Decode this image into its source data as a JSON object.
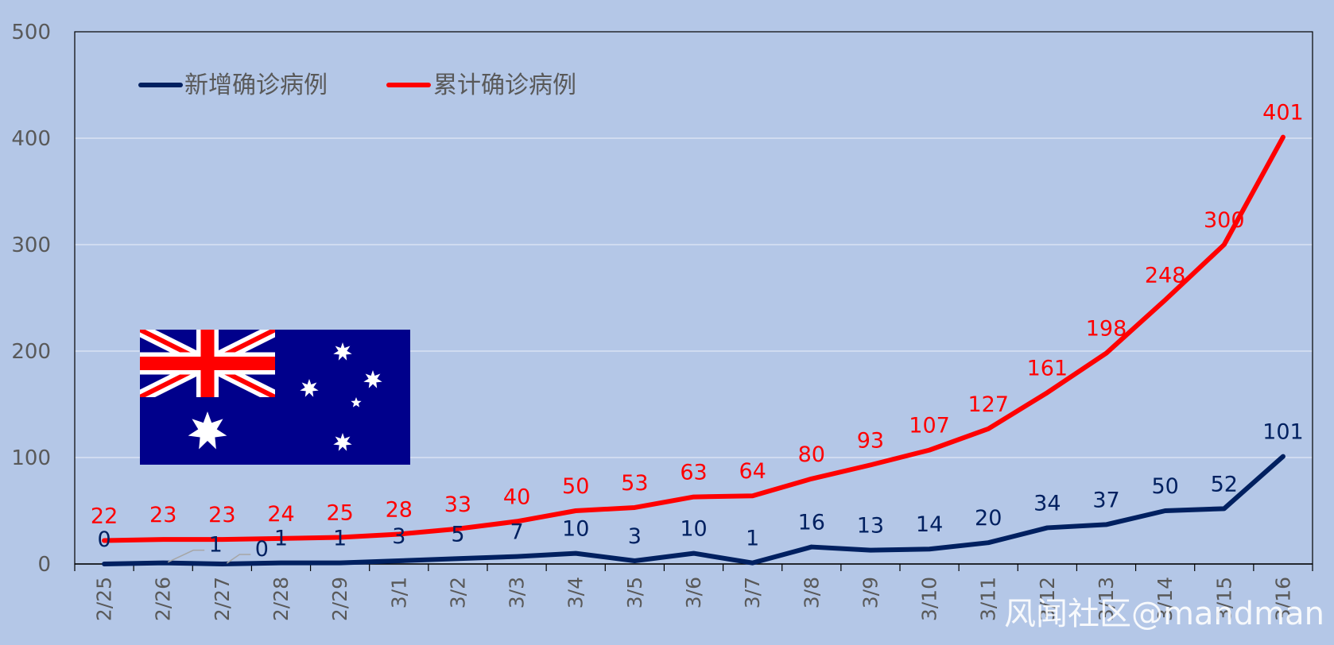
{
  "chart_data": {
    "type": "line",
    "categories": [
      "2/25",
      "2/26",
      "2/27",
      "2/28",
      "2/29",
      "3/1",
      "3/2",
      "3/3",
      "3/4",
      "3/5",
      "3/6",
      "3/7",
      "3/8",
      "3/9",
      "3/10",
      "3/11",
      "3/12",
      "3/13",
      "3/14",
      "3/15",
      "3/16"
    ],
    "series": [
      {
        "name": "新增确诊病例",
        "color": "#002060",
        "values": [
          0,
          1,
          0,
          1,
          1,
          3,
          5,
          7,
          10,
          3,
          10,
          1,
          16,
          13,
          14,
          20,
          34,
          37,
          50,
          52,
          101
        ],
        "labels": [
          "0",
          "1",
          "0",
          "1",
          "1",
          "3",
          "5",
          "7",
          "10",
          "3",
          "10",
          "1",
          "16",
          "13",
          "14",
          "20",
          "34",
          "37",
          "50",
          "52",
          "101"
        ]
      },
      {
        "name": "累计确诊病例",
        "color": "#ff0000",
        "values": [
          22,
          23,
          23,
          24,
          25,
          28,
          33,
          40,
          50,
          53,
          63,
          64,
          80,
          93,
          107,
          127,
          161,
          198,
          248,
          300,
          401
        ],
        "labels": [
          "22",
          "23",
          "23",
          "24",
          "25",
          "28",
          "33",
          "40",
          "50",
          "53",
          "63",
          "64",
          "80",
          "93",
          "107",
          "127",
          "161",
          "198",
          "248",
          "300",
          "401"
        ]
      }
    ],
    "ylim": [
      0,
      500
    ],
    "yticks": [
      "0",
      "100",
      "200",
      "300",
      "400",
      "500"
    ],
    "grid": true,
    "legend_position": "top-left",
    "xlabel": "",
    "ylabel": "",
    "title": ""
  },
  "flag": {
    "name": "australia-flag-icon",
    "field_color": "#00008b",
    "cross_color": "#ff0000"
  },
  "watermark": "风闻社区@mandman"
}
